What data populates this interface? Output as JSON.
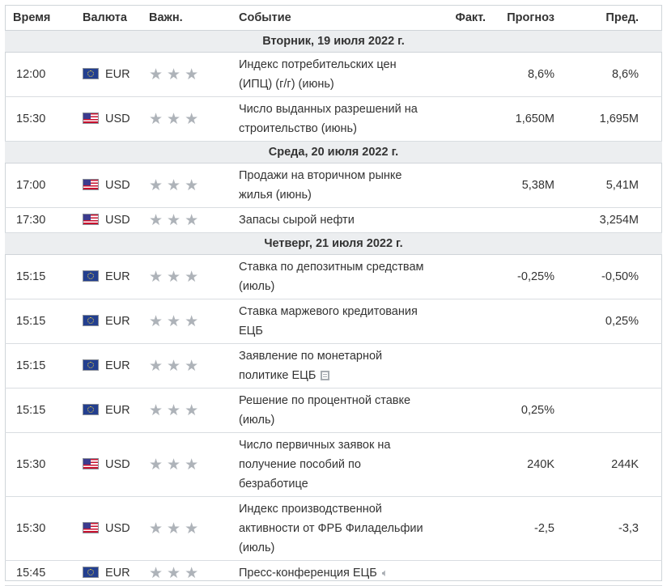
{
  "header": {
    "time": "Время",
    "currency": "Валюта",
    "importance": "Важн.",
    "event": "Событие",
    "actual": "Факт.",
    "forecast": "Прогноз",
    "previous": "Пред."
  },
  "days": [
    {
      "date": "Вторник, 19 июля 2022 г.",
      "events": [
        {
          "time": "12:00",
          "currency": "EUR",
          "flag": "eu-flag-icon",
          "importance": "★★★",
          "title": "Индекс потребительских цен (ИПЦ) (г/г) (июнь)",
          "actual": "",
          "forecast": "8,6%",
          "previous": "8,6%",
          "icon": ""
        },
        {
          "time": "15:30",
          "currency": "USD",
          "flag": "us-flag-icon",
          "importance": "★★★",
          "title": "Число выданных разрешений на строительство (июнь)",
          "actual": "",
          "forecast": "1,650M",
          "previous": "1,695M",
          "icon": ""
        }
      ]
    },
    {
      "date": "Среда, 20 июля 2022 г.",
      "events": [
        {
          "time": "17:00",
          "currency": "USD",
          "flag": "us-flag-icon",
          "importance": "★★★",
          "title": "Продажи на вторичном рынке жилья (июнь)",
          "actual": "",
          "forecast": "5,38M",
          "previous": "5,41M",
          "icon": ""
        },
        {
          "time": "17:30",
          "currency": "USD",
          "flag": "us-flag-icon",
          "importance": "★★★",
          "title": "Запасы сырой нефти",
          "actual": "",
          "forecast": "",
          "previous": "3,254M",
          "icon": ""
        }
      ]
    },
    {
      "date": "Четверг, 21 июля 2022 г.",
      "events": [
        {
          "time": "15:15",
          "currency": "EUR",
          "flag": "eu-flag-icon",
          "importance": "★★★",
          "title": "Ставка по депозитным средствам (июль)",
          "actual": "",
          "forecast": "-0,25%",
          "previous": "-0,50%",
          "icon": ""
        },
        {
          "time": "15:15",
          "currency": "EUR",
          "flag": "eu-flag-icon",
          "importance": "★★★",
          "title": "Ставка маржевого кредитования ЕЦБ",
          "actual": "",
          "forecast": "",
          "previous": "0,25%",
          "icon": ""
        },
        {
          "time": "15:15",
          "currency": "EUR",
          "flag": "eu-flag-icon",
          "importance": "★★★",
          "title": "Заявление по монетарной политике ЕЦБ",
          "actual": "",
          "forecast": "",
          "previous": "",
          "icon": "document-icon"
        },
        {
          "time": "15:15",
          "currency": "EUR",
          "flag": "eu-flag-icon",
          "importance": "★★★",
          "title": "Решение по процентной ставке (июль)",
          "actual": "",
          "forecast": "0,25%",
          "previous": "",
          "icon": ""
        },
        {
          "time": "15:30",
          "currency": "USD",
          "flag": "us-flag-icon",
          "importance": "★★★",
          "title": "Число первичных заявок на получение пособий по безработице",
          "actual": "",
          "forecast": "240K",
          "previous": "244K",
          "icon": ""
        },
        {
          "time": "15:30",
          "currency": "USD",
          "flag": "us-flag-icon",
          "importance": "★★★",
          "title": "Индекс производственной активности от ФРБ Филадельфии (июль)",
          "actual": "",
          "forecast": "-2,5",
          "previous": "-3,3",
          "icon": ""
        },
        {
          "time": "15:45",
          "currency": "EUR",
          "flag": "eu-flag-icon",
          "importance": "★★★",
          "title": "Пресс-конференция ЕЦБ",
          "actual": "",
          "forecast": "",
          "previous": "",
          "icon": "speaker-icon"
        }
      ]
    }
  ]
}
